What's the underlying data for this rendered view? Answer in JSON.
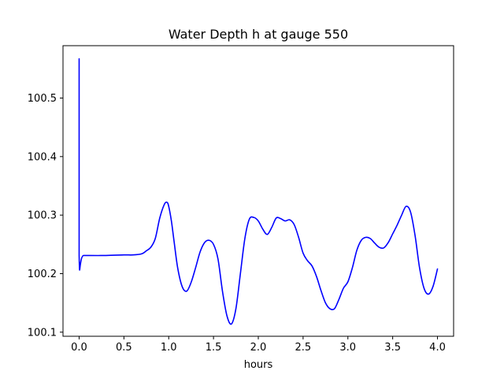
{
  "chart_data": {
    "type": "line",
    "title": "Water Depth h at gauge 550",
    "xlabel": "hours",
    "ylabel": "",
    "xlim": [
      -0.18,
      4.18
    ],
    "ylim": [
      100.093,
      100.5895
    ],
    "grid": false,
    "x_ticks": [
      0.0,
      0.5,
      1.0,
      1.5,
      2.0,
      2.5,
      3.0,
      3.5,
      4.0
    ],
    "x_tick_labels": [
      "0.0",
      "0.5",
      "1.0",
      "1.5",
      "2.0",
      "2.5",
      "3.0",
      "3.5",
      "4.0"
    ],
    "y_ticks": [
      100.1,
      100.2,
      100.3,
      100.4,
      100.5
    ],
    "y_tick_labels": [
      "100.1",
      "100.2",
      "100.3",
      "100.4",
      "100.5"
    ],
    "series": [
      {
        "color": "#0000ff",
        "x": [
          0.0,
          0.0,
          0.05,
          0.3,
          0.5,
          0.6,
          0.7,
          0.75,
          0.8,
          0.85,
          0.9,
          0.95,
          0.98,
          1.0,
          1.03,
          1.06,
          1.1,
          1.15,
          1.2,
          1.25,
          1.3,
          1.35,
          1.4,
          1.45,
          1.5,
          1.55,
          1.6,
          1.65,
          1.7,
          1.75,
          1.8,
          1.85,
          1.9,
          1.95,
          2.0,
          2.05,
          2.1,
          2.15,
          2.2,
          2.25,
          2.3,
          2.35,
          2.4,
          2.45,
          2.5,
          2.55,
          2.6,
          2.65,
          2.7,
          2.75,
          2.8,
          2.85,
          2.9,
          2.95,
          3.0,
          3.05,
          3.1,
          3.15,
          3.2,
          3.25,
          3.3,
          3.35,
          3.4,
          3.45,
          3.5,
          3.55,
          3.6,
          3.65,
          3.7,
          3.75,
          3.8,
          3.85,
          3.9,
          3.95,
          4.0
        ],
        "y": [
          100.567,
          100.231,
          100.231,
          100.231,
          100.232,
          100.232,
          100.234,
          100.239,
          100.245,
          100.26,
          100.295,
          100.318,
          100.322,
          100.315,
          100.29,
          100.255,
          100.21,
          100.178,
          100.17,
          100.185,
          100.21,
          100.237,
          100.253,
          100.257,
          100.25,
          100.225,
          100.17,
          100.128,
          100.114,
          100.14,
          100.2,
          100.26,
          100.293,
          100.296,
          100.29,
          100.276,
          100.267,
          100.279,
          100.295,
          100.294,
          100.29,
          100.292,
          100.284,
          100.262,
          100.235,
          100.222,
          100.213,
          100.195,
          100.171,
          100.15,
          100.14,
          100.14,
          100.156,
          100.175,
          100.186,
          100.21,
          100.24,
          100.257,
          100.262,
          100.26,
          100.252,
          100.245,
          100.244,
          100.253,
          100.268,
          100.283,
          100.3,
          100.315,
          100.305,
          100.265,
          100.21,
          100.175,
          100.165,
          100.178,
          100.208
        ]
      }
    ]
  }
}
